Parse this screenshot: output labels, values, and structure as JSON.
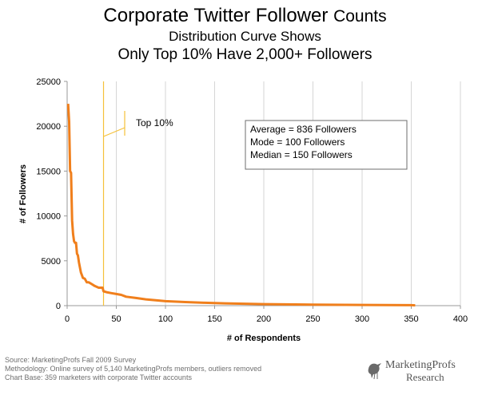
{
  "header": {
    "title_main": "Corporate Twitter Follower",
    "title_tail": "Counts",
    "subtitle_line1": "Distribution Curve Shows",
    "subtitle_line2": "Only Top 10% Have 2,000+ Followers"
  },
  "footer": {
    "source": "Source: MarketingProfs Fall 2009 Survey",
    "methodology": "Methodology: Online survey of 5,140 MarketingProfs members, outliers removed",
    "base": "Chart Base: 359 marketers with corporate Twitter  accounts"
  },
  "logo": {
    "name": "MarketingProfs",
    "sub": "Research"
  },
  "colors": {
    "curve": "#f07f1c",
    "marker": "#f5c13a",
    "grid": "#d6d6d6",
    "axis": "#999999",
    "footer_text": "#6f6f6f"
  },
  "chart_data": {
    "type": "line",
    "title": "Corporate Twitter Follower Counts",
    "xlabel": "# of Respondents",
    "ylabel": "# of Followers",
    "xlim": [
      0,
      400
    ],
    "ylim": [
      0,
      25000
    ],
    "x_ticks": [
      0,
      50,
      100,
      150,
      200,
      250,
      300,
      350,
      400
    ],
    "y_ticks": [
      0,
      5000,
      10000,
      15000,
      20000,
      25000
    ],
    "x_tick_labels": [
      "0",
      "50",
      "100",
      "150",
      "200",
      "250",
      "300",
      "350",
      "400"
    ],
    "y_tick_labels": [
      "0",
      "5000",
      "10000",
      "15000",
      "20000",
      "25000"
    ],
    "grid": "vertical",
    "series": [
      {
        "x": [
          1,
          2,
          3,
          4,
          5,
          6,
          7,
          8,
          9,
          10,
          11,
          12,
          14,
          16,
          18,
          20,
          22,
          25,
          28,
          32,
          36,
          37,
          40,
          45,
          50,
          55,
          60,
          70,
          80,
          90,
          100,
          120,
          140,
          160,
          180,
          200,
          250,
          300,
          350,
          354
        ],
        "y": [
          22500,
          20500,
          15000,
          14800,
          9500,
          8000,
          7200,
          7000,
          7000,
          5800,
          5600,
          4800,
          3700,
          3100,
          3000,
          2600,
          2600,
          2400,
          2200,
          2000,
          2000,
          1600,
          1500,
          1400,
          1300,
          1200,
          1000,
          850,
          700,
          600,
          500,
          400,
          320,
          260,
          210,
          170,
          120,
          80,
          50,
          40
        ]
      }
    ],
    "annotations": [
      {
        "text": "Top 10%",
        "x": 37
      },
      {
        "text": "Average = 836 Followers"
      },
      {
        "text": "Mode = 100 Followers"
      },
      {
        "text": "Median = 150 Followers"
      }
    ]
  }
}
